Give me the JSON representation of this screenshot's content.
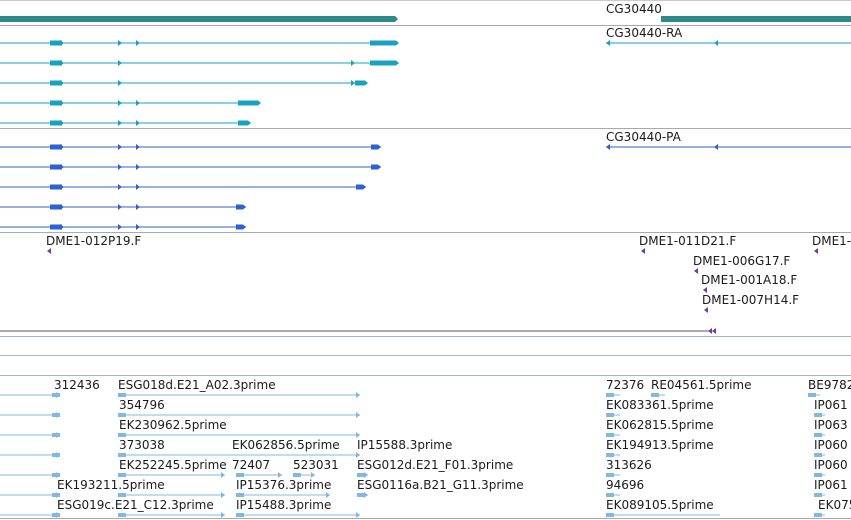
{
  "gene_track": {
    "gene_label": "CG30440",
    "transcript_label": "CG30440-RA",
    "protein_label": "CG30440-PA",
    "colors": {
      "gene": "#2e8b8b",
      "transcript": "#17a2bf",
      "protein": "#2f62cf",
      "clone": "#6b3fa0",
      "est": "#7fb8e0",
      "divider": "#aaaaaa"
    }
  },
  "clone_labels": [
    "DME1-012P19.F",
    "DME1-011D21.F",
    "DME1-",
    "DME1-006G17.F",
    "DME1-001A18.F",
    "DME1-007H14.F"
  ],
  "est_labels": [
    "312436",
    "ESG018d.E21_A02.3prime",
    "72376",
    "RE04561.5prime",
    "BE9782",
    "354796",
    "EK083361.5prime",
    "IP061",
    "EK230962.5prime",
    "EK062815.5prime",
    "IP063",
    "373038",
    "EK062856.5prime",
    "IP15588.3prime",
    "EK194913.5prime",
    "IP060",
    "EK252245.5prime",
    "72407",
    "523031",
    "ESG012d.E21_F01.3prime",
    "313626",
    "IP060",
    "EK193211.5prime",
    "IP15376.3prime",
    "ESG0116a.B21_G11.3prime",
    "94696",
    "IP061",
    "ESG019c.E21_C12.3prime",
    "IP15488.3prime",
    "EK089105.5prime",
    "EK075"
  ]
}
